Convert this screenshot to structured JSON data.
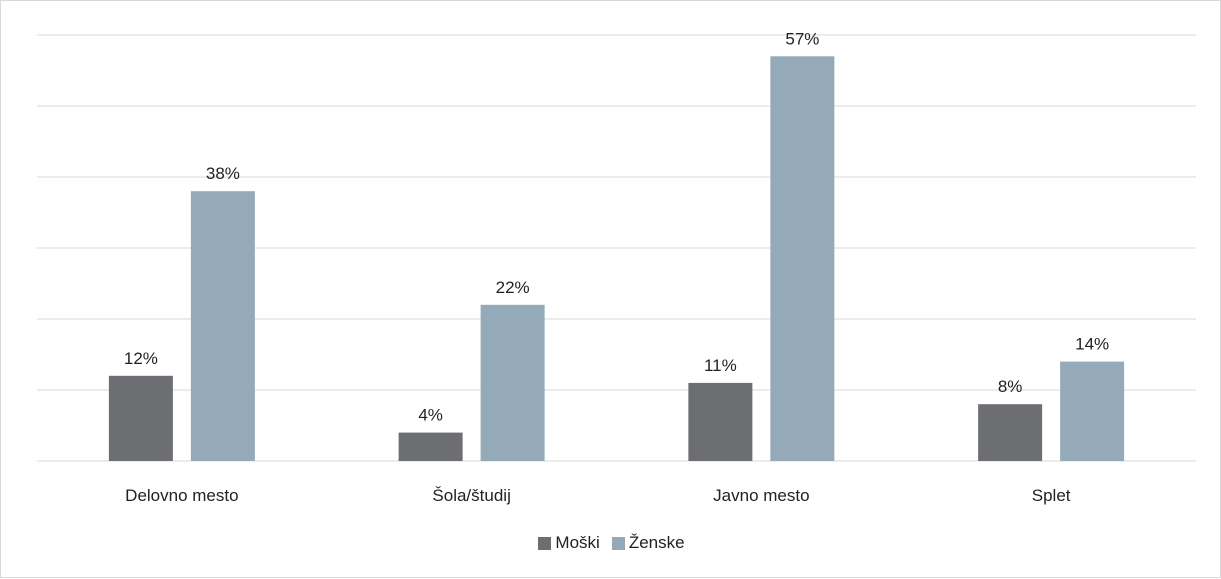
{
  "chart_data": {
    "type": "bar",
    "categories": [
      "Delovno mesto",
      "Šola/študij",
      "Javno mesto",
      "Splet"
    ],
    "series": [
      {
        "name": "Moški",
        "values": [
          12,
          4,
          11,
          8
        ],
        "labels": [
          "12%",
          "4%",
          "11%",
          "8%"
        ],
        "color": "#6d6e71"
      },
      {
        "name": "Ženske",
        "values": [
          38,
          22,
          57,
          14
        ],
        "labels": [
          "38%",
          "22%",
          "57%",
          "14%"
        ],
        "color": "#94aab9"
      }
    ],
    "ylim": [
      0,
      60
    ],
    "grid": true,
    "legend_position": "bottom",
    "gridline_color": "#d9d9d9",
    "axis_color": "#d9d9d9"
  }
}
